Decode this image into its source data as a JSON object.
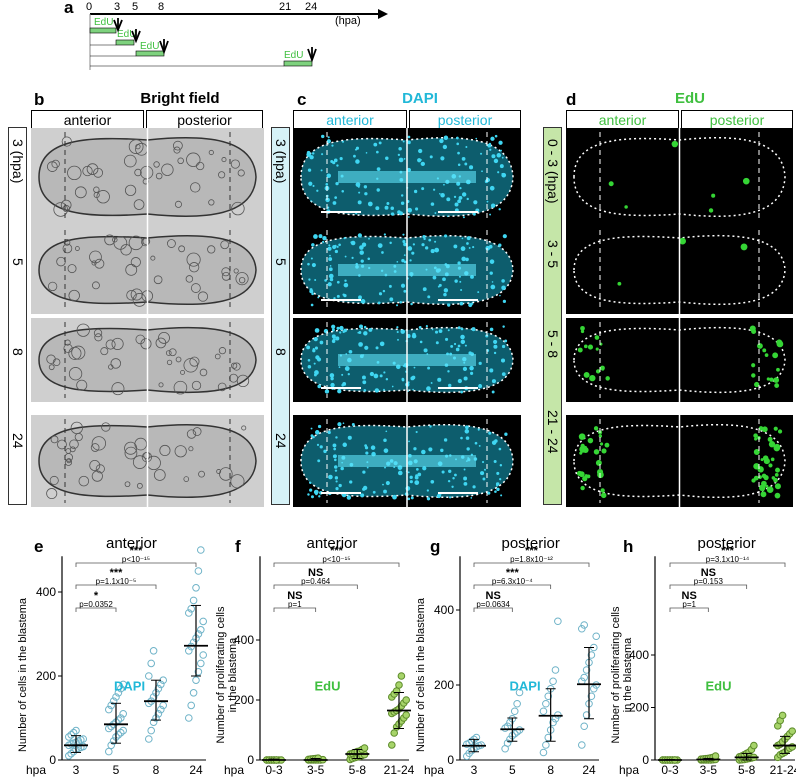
{
  "panel_letters": {
    "a": "a",
    "b": "b",
    "c": "c",
    "d": "d",
    "e": "e",
    "f": "f",
    "g": "g",
    "h": "h"
  },
  "timeline": {
    "ticks": [
      "0",
      "3",
      "5",
      "8",
      "21",
      "24"
    ],
    "unit": "(hpa)",
    "edu_label": "EdU"
  },
  "panel_b": {
    "title": "Bright field",
    "anterior": "anterior",
    "posterior": "posterior",
    "rows": [
      "3 (hpa)",
      "5",
      "8",
      "24"
    ]
  },
  "panel_c": {
    "title": "DAPI",
    "anterior": "anterior",
    "posterior": "posterior",
    "rows": [
      "3 (hpa)",
      "5",
      "8",
      "24"
    ]
  },
  "panel_d": {
    "title": "EdU",
    "anterior": "anterior",
    "posterior": "posterior",
    "rows": [
      "0 - 3 (hpa)",
      "3 - 5",
      "5 - 8",
      "21 - 24"
    ]
  },
  "colors": {
    "dapi": "#21b8d8",
    "edu": "#3fbf3f",
    "sidebar_c": "#d6f2f7",
    "sidebar_d": "#c5e6a8"
  },
  "plots": {
    "e": {
      "title": "anterior",
      "ylabel": "Number of cells in the blastema",
      "stain": "DAPI",
      "hpa": "hpa",
      "sig": [
        {
          "s": "*",
          "p": "p=0.0352"
        },
        {
          "s": "***",
          "p": "p=1.1x10⁻⁵"
        },
        {
          "s": "***",
          "p": "p<10⁻¹⁵"
        }
      ]
    },
    "f": {
      "title": "anterior",
      "ylabel1": "Number of proliferating cells",
      "ylabel2": "in the blastema",
      "stain": "EdU",
      "hpa": "hpa",
      "sig": [
        {
          "s": "NS",
          "p": "p=1"
        },
        {
          "s": "NS",
          "p": "p=0.464"
        },
        {
          "s": "***",
          "p": "p<10⁻¹⁵"
        }
      ]
    },
    "g": {
      "title": "posterior",
      "ylabel": "Number of cells in the blastema",
      "stain": "DAPI",
      "hpa": "hpa",
      "sig": [
        {
          "s": "NS",
          "p": "p=0.0634"
        },
        {
          "s": "***",
          "p": "p=6.3x10⁻⁴"
        },
        {
          "s": "***",
          "p": "p=1.8x10⁻¹²"
        }
      ]
    },
    "h": {
      "title": "posterior",
      "ylabel1": "Number of proliferating cells",
      "ylabel2": "in the blastema",
      "stain": "EdU",
      "hpa": "hpa",
      "sig": [
        {
          "s": "NS",
          "p": "p=1"
        },
        {
          "s": "NS",
          "p": "p=0.153"
        },
        {
          "s": "***",
          "p": "p=3.1x10⁻¹⁴"
        }
      ]
    }
  },
  "chart_data": [
    {
      "type": "scatter",
      "title": "anterior",
      "ylabel": "Number of cells in the blastema",
      "xlabel": "hpa",
      "categories": [
        "3",
        "5",
        "8",
        "24"
      ],
      "ylim": [
        0,
        500
      ],
      "yticks": [
        0,
        200,
        400
      ],
      "means": [
        35,
        85,
        140,
        272
      ],
      "sd": [
        [
          18,
          58
        ],
        [
          40,
          135
        ],
        [
          95,
          190
        ],
        [
          200,
          368
        ]
      ],
      "values": [
        [
          10,
          15,
          20,
          25,
          28,
          30,
          32,
          35,
          38,
          40,
          42,
          45,
          48,
          50,
          55,
          60,
          65,
          70
        ],
        [
          20,
          35,
          45,
          55,
          60,
          65,
          70,
          75,
          80,
          85,
          90,
          95,
          100,
          110,
          120,
          130,
          140,
          150,
          160,
          170,
          180
        ],
        [
          50,
          70,
          90,
          100,
          110,
          120,
          130,
          135,
          140,
          150,
          160,
          170,
          180,
          190,
          200,
          230,
          260
        ],
        [
          100,
          130,
          160,
          190,
          210,
          230,
          250,
          260,
          270,
          280,
          290,
          300,
          310,
          330,
          350,
          360,
          380,
          410,
          450,
          500
        ]
      ]
    },
    {
      "type": "scatter",
      "title": "anterior",
      "ylabel": "Number of proliferating cells in the blastema",
      "xlabel": "hpa",
      "categories": [
        "0-3",
        "3-5",
        "5-8",
        "21-24"
      ],
      "ylim": [
        0,
        700
      ],
      "yticks": [
        0,
        200,
        400
      ],
      "means": [
        0,
        0,
        20,
        165
      ],
      "sd": [
        [
          0,
          3
        ],
        [
          0,
          5
        ],
        [
          5,
          35
        ],
        [
          105,
          225
        ]
      ],
      "values": [
        [
          0,
          0,
          0,
          0,
          0,
          0,
          0,
          0,
          0,
          0,
          0,
          0
        ],
        [
          0,
          0,
          0,
          0,
          0,
          0,
          1,
          2,
          3,
          4,
          5,
          6
        ],
        [
          2,
          5,
          8,
          10,
          12,
          15,
          18,
          20,
          22,
          25,
          28,
          30,
          35,
          40
        ],
        [
          50,
          90,
          110,
          120,
          130,
          140,
          150,
          155,
          160,
          165,
          170,
          180,
          190,
          200,
          210,
          220,
          230,
          250,
          280
        ]
      ]
    },
    {
      "type": "scatter",
      "title": "posterior",
      "ylabel": "Number of cells in the blastema",
      "xlabel": "hpa",
      "categories": [
        "3",
        "5",
        "8",
        "24"
      ],
      "ylim": [
        0,
        560
      ],
      "yticks": [
        0,
        200,
        400
      ],
      "means": [
        38,
        82,
        118,
        202
      ],
      "sd": [
        [
          22,
          55
        ],
        [
          50,
          112
        ],
        [
          50,
          190
        ],
        [
          110,
          300
        ]
      ],
      "values": [
        [
          10,
          18,
          25,
          30,
          35,
          38,
          40,
          42,
          45,
          50,
          55,
          60
        ],
        [
          30,
          45,
          55,
          65,
          70,
          75,
          80,
          85,
          90,
          100,
          110,
          130,
          150,
          180
        ],
        [
          20,
          40,
          60,
          80,
          100,
          110,
          120,
          130,
          150,
          170,
          190,
          210,
          240,
          370
        ],
        [
          40,
          90,
          120,
          150,
          170,
          190,
          200,
          210,
          220,
          240,
          260,
          280,
          300,
          330,
          350,
          360
        ]
      ]
    },
    {
      "type": "scatter",
      "title": "posterior",
      "ylabel": "Number of proliferating cells in the blastema",
      "xlabel": "hpa",
      "categories": [
        "0-3",
        "3-5",
        "5-8",
        "21-24"
      ],
      "ylim": [
        0,
        800
      ],
      "yticks": [
        0,
        200,
        400
      ],
      "means": [
        0,
        2,
        10,
        55
      ],
      "sd": [
        [
          0,
          2
        ],
        [
          0,
          6
        ],
        [
          0,
          25
        ],
        [
          25,
          90
        ]
      ],
      "values": [
        [
          0,
          0,
          0,
          0,
          0,
          0,
          0,
          0,
          0,
          0,
          0,
          0,
          0
        ],
        [
          0,
          0,
          0,
          0,
          0,
          1,
          2,
          3,
          4,
          5,
          6,
          8,
          10,
          15
        ],
        [
          0,
          1,
          2,
          4,
          6,
          8,
          10,
          12,
          15,
          20,
          25,
          30,
          40,
          55
        ],
        [
          10,
          20,
          25,
          30,
          40,
          45,
          50,
          55,
          60,
          70,
          80,
          90,
          100,
          110,
          130,
          150,
          170
        ]
      ]
    }
  ]
}
